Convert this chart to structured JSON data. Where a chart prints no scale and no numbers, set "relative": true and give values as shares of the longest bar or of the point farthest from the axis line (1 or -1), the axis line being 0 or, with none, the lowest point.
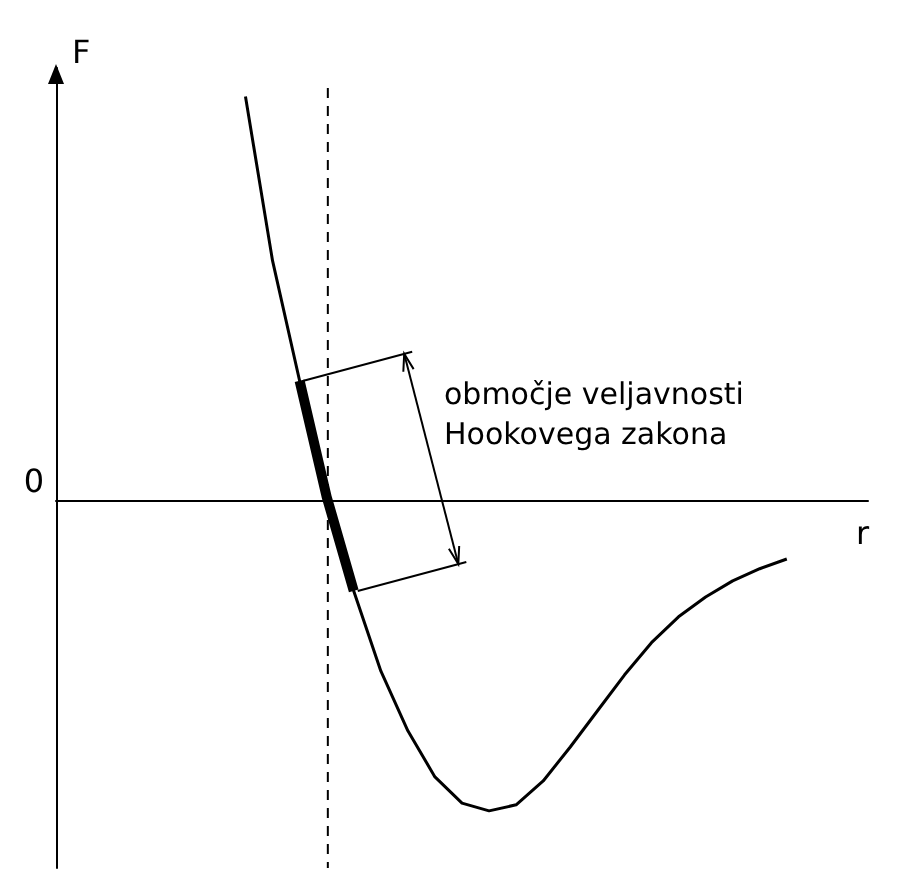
{
  "chart_data": {
    "type": "line",
    "relative": true,
    "xlabel": "r",
    "ylabel": "F",
    "annotations": [
      "0",
      "območje veljavnosti\nHookovega zakona"
    ],
    "categories": [
      null,
      null,
      null,
      null,
      null,
      null,
      null,
      null,
      null,
      null,
      null,
      null,
      null,
      null,
      null,
      null,
      null,
      null,
      null,
      null,
      null,
      null,
      null,
      null,
      null,
      null,
      null,
      null,
      null,
      null,
      null
    ],
    "series": [
      {
        "color": "#000000",
        "values": [
          null,
          null,
          null,
          null,
          null,
          null,
          null,
          1,
          0.594,
          0.297,
          0.01,
          -0.223,
          -0.421,
          -0.569,
          -0.683,
          -0.748,
          -0.767,
          -0.752,
          -0.693,
          -0.609,
          -0.52,
          -0.431,
          -0.351,
          -0.287,
          -0.238,
          -0.198,
          -0.168,
          -0.144,
          null,
          null,
          null
        ]
      },
      {
        "color": "#000000",
        "values": [
          null,
          null,
          null,
          null,
          null,
          null,
          null,
          null,
          null,
          0.297,
          0.01,
          -0.223,
          null,
          null,
          null,
          null,
          null,
          null,
          null,
          null,
          null,
          null,
          null,
          null,
          null,
          null,
          null,
          null,
          null,
          null,
          null
        ]
      }
    ],
    "grid": false,
    "marker": "none",
    "line_style": "solid"
  }
}
